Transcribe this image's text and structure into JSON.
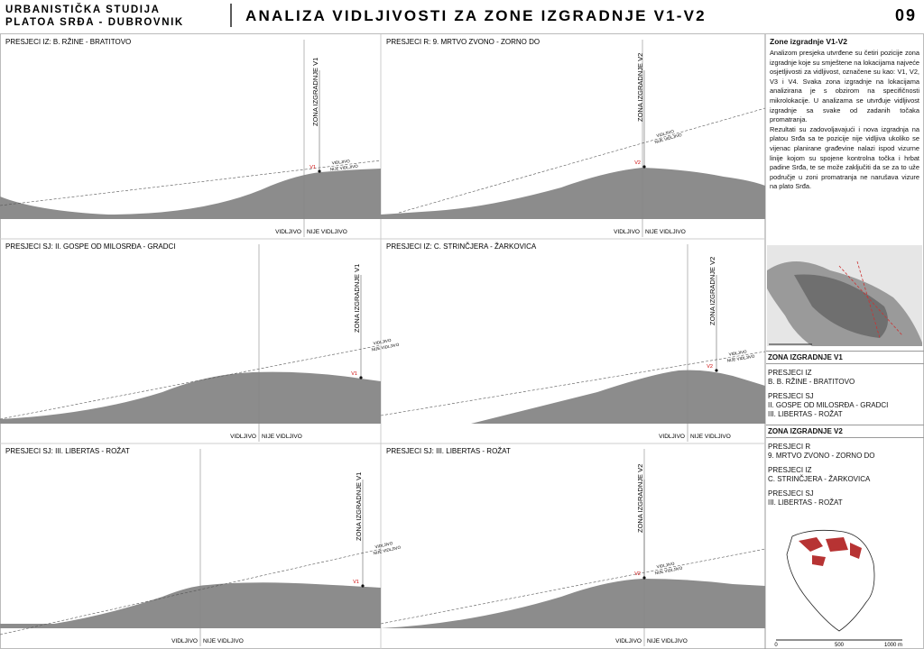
{
  "header": {
    "org_lines": [
      "URBANISTIČKA STUDIJA",
      "PLATOA SRĐA - DUBROVNIK"
    ],
    "title": "ANALIZA VIDLJIVOSTI ZA ZONE IZGRADNJE V1-V2",
    "page_number": "09"
  },
  "panels": [
    {
      "title": "PRESJECI IZ: B. RŽINE - BRATITOVO",
      "zone_label": "ZONA IZGRADNJE V1",
      "marker": "V1",
      "visible_label": "VIDLJIVO",
      "not_visible_label": "NIJE VIDLJIVO"
    },
    {
      "title": "PRESJECI R: 9. MRTVO ZVONO - ZORNO DO",
      "zone_label": "ZONA IZGRADNJE V2",
      "marker": "V2",
      "visible_label": "VIDLJIVO",
      "not_visible_label": "NIJE VIDLJIVO"
    },
    {
      "title": "PRESJECI SJ: II. GOSPE OD MILOSRĐA - GRADCI",
      "zone_label": "ZONA IZGRADNJE V1",
      "marker": "V1",
      "visible_label": "VIDLJIVO",
      "not_visible_label": "NIJE VIDLJIVO"
    },
    {
      "title": "PRESJECI IZ: C. STRINČJERA - ŽARKOVICA",
      "zone_label": "ZONA IZGRADNJE V2",
      "marker": "V2",
      "visible_label": "VIDLJIVO",
      "not_visible_label": "NIJE VIDLJIVO"
    },
    {
      "title": "PRESJECI SJ: III. LIBERTAS - ROŽAT",
      "zone_label": "ZONA IZGRADNJE V1",
      "marker": "V1",
      "visible_label": "VIDLJIVO",
      "not_visible_label": "NIJE VIDLJIVO"
    },
    {
      "title": "PRESJECI SJ: III. LIBERTAS - ROŽAT",
      "zone_label": "ZONA IZGRADNJE V2",
      "marker": "V2",
      "visible_label": "VIDLJIVO",
      "not_visible_label": "NIJE VIDLJIVO"
    }
  ],
  "sidebar": {
    "heading": "Zone izgradnje V1-V2",
    "paragraphs": [
      "Analizom presjeka utvrđene su četiri pozicije zona izgradnje koje su smještene na lokacijama najveće osjetljivosti za vidljivost, označene su kao: V1, V2, V3 i V4. Svaka zona izgradnje na lokacijama analizirana je s obzirom na specifičnosti mikrolokacije. U analizama se utvrđuje vidljivost izgradnje sa svake od zadanih točaka promatranja.",
      "Rezultati su zadovoljavajući i nova izgradnja na platou Srđa sa te pozicije nije vidljiva ukoliko se vijenac planirane građevine nalazi ispod vizurne linije kojom su spojene kontrolna točka i hrbat padine Srđa, te se može zaključiti da se za to uže područje u zoni promatranja ne narušava vizure na plato Srđa."
    ],
    "zones": [
      {
        "title": "ZONA IZGRADNJE V1",
        "groups": [
          {
            "label": "PRESJECI IZ",
            "items": [
              "B. B. RŽINE - BRATITOVO"
            ]
          },
          {
            "label": "PRESJECI SJ",
            "items": [
              "II. GOSPE OD MILOSRĐA - GRADCI",
              "III. LIBERTAS - ROŽAT"
            ]
          }
        ]
      },
      {
        "title": "ZONA IZGRADNJE V2",
        "groups": [
          {
            "label": "PRESJECI R",
            "items": [
              "9. MRTVO ZVONO - ZORNO DO"
            ]
          },
          {
            "label": "PRESJECI IZ",
            "items": [
              "C. STRINČJERA - ŽARKOVICA"
            ]
          },
          {
            "label": "PRESJECI SJ",
            "items": [
              "III. LIBERTAS - ROŽAT"
            ]
          }
        ]
      }
    ],
    "map_scale": [
      "0",
      "500",
      "1000 m"
    ]
  }
}
